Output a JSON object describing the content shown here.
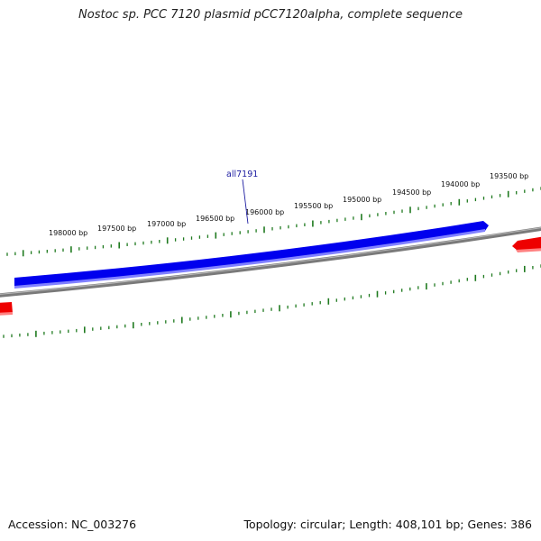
{
  "title": "Nostoc sp. PCC 7120 plasmid pCC7120alpha, complete sequence",
  "accession": "Accession: NC_003276",
  "summary": "Topology: circular; Length: 408,101 bp; Genes: 386",
  "scale_labels": [
    "198000 bp",
    "197500 bp",
    "197000 bp",
    "196500 bp",
    "196000 bp",
    "195500 bp",
    "195000 bp",
    "194500 bp",
    "194000 bp",
    "193500 bp"
  ],
  "gene_label": "all7191",
  "colors": {
    "forward_gene": "#0000ee",
    "reverse_gene": "#ee0000",
    "backbone": "#7a7a7a",
    "ticks": "#1f7a1f",
    "gene_label": "#1a1aa0"
  }
}
